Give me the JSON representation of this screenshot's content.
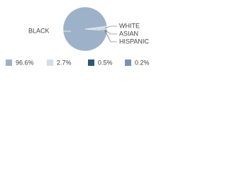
{
  "chart_data": {
    "type": "pie",
    "categories": [
      "BLACK",
      "WHITE",
      "ASIAN",
      "HISPANIC"
    ],
    "values": [
      96.6,
      2.7,
      0.5,
      0.2
    ],
    "value_labels": [
      "96.6%",
      "2.7%",
      "0.5%",
      "0.2%"
    ],
    "colors": [
      "#9db2c9",
      "#d3dde8",
      "#2e5676",
      "#7893b0"
    ]
  }
}
